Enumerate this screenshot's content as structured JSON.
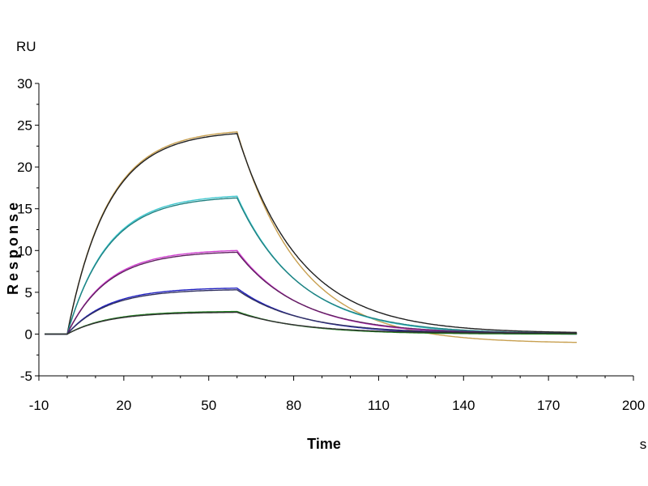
{
  "chart_data": {
    "type": "line",
    "y_unit": "RU",
    "x_unit": "s",
    "ylabel": "Response",
    "xlabel": "Time",
    "xlim": [
      -10,
      200
    ],
    "ylim": [
      -5,
      30
    ],
    "x_ticks": [
      -10,
      20,
      50,
      80,
      110,
      140,
      170,
      200
    ],
    "y_ticks": [
      -5,
      0,
      5,
      10,
      15,
      20,
      25,
      30
    ],
    "grid": false,
    "association_start_s": 0,
    "dissociation_start_s": 60,
    "end_s": 180,
    "series": [
      {
        "color": "#c8a050",
        "plateau_ru": 24.2,
        "end_ru": -1.0
      },
      {
        "color": "#202020",
        "plateau_ru": 24.0,
        "end_ru": 0.2
      },
      {
        "color": "#40c8d0",
        "plateau_ru": 16.5,
        "end_ru": 0.0
      },
      {
        "color": "#208080",
        "plateau_ru": 16.3,
        "end_ru": 0.1
      },
      {
        "color": "#d040d0",
        "plateau_ru": 10.0,
        "end_ru": 0.0
      },
      {
        "color": "#602060",
        "plateau_ru": 9.8,
        "end_ru": 0.1
      },
      {
        "color": "#2020c0",
        "plateau_ru": 5.5,
        "end_ru": 0.0
      },
      {
        "color": "#303060",
        "plateau_ru": 5.3,
        "end_ru": 0.1
      },
      {
        "color": "#208020",
        "plateau_ru": 2.7,
        "end_ru": 0.0
      },
      {
        "color": "#303030",
        "plateau_ru": 2.6,
        "end_ru": 0.1
      }
    ]
  }
}
